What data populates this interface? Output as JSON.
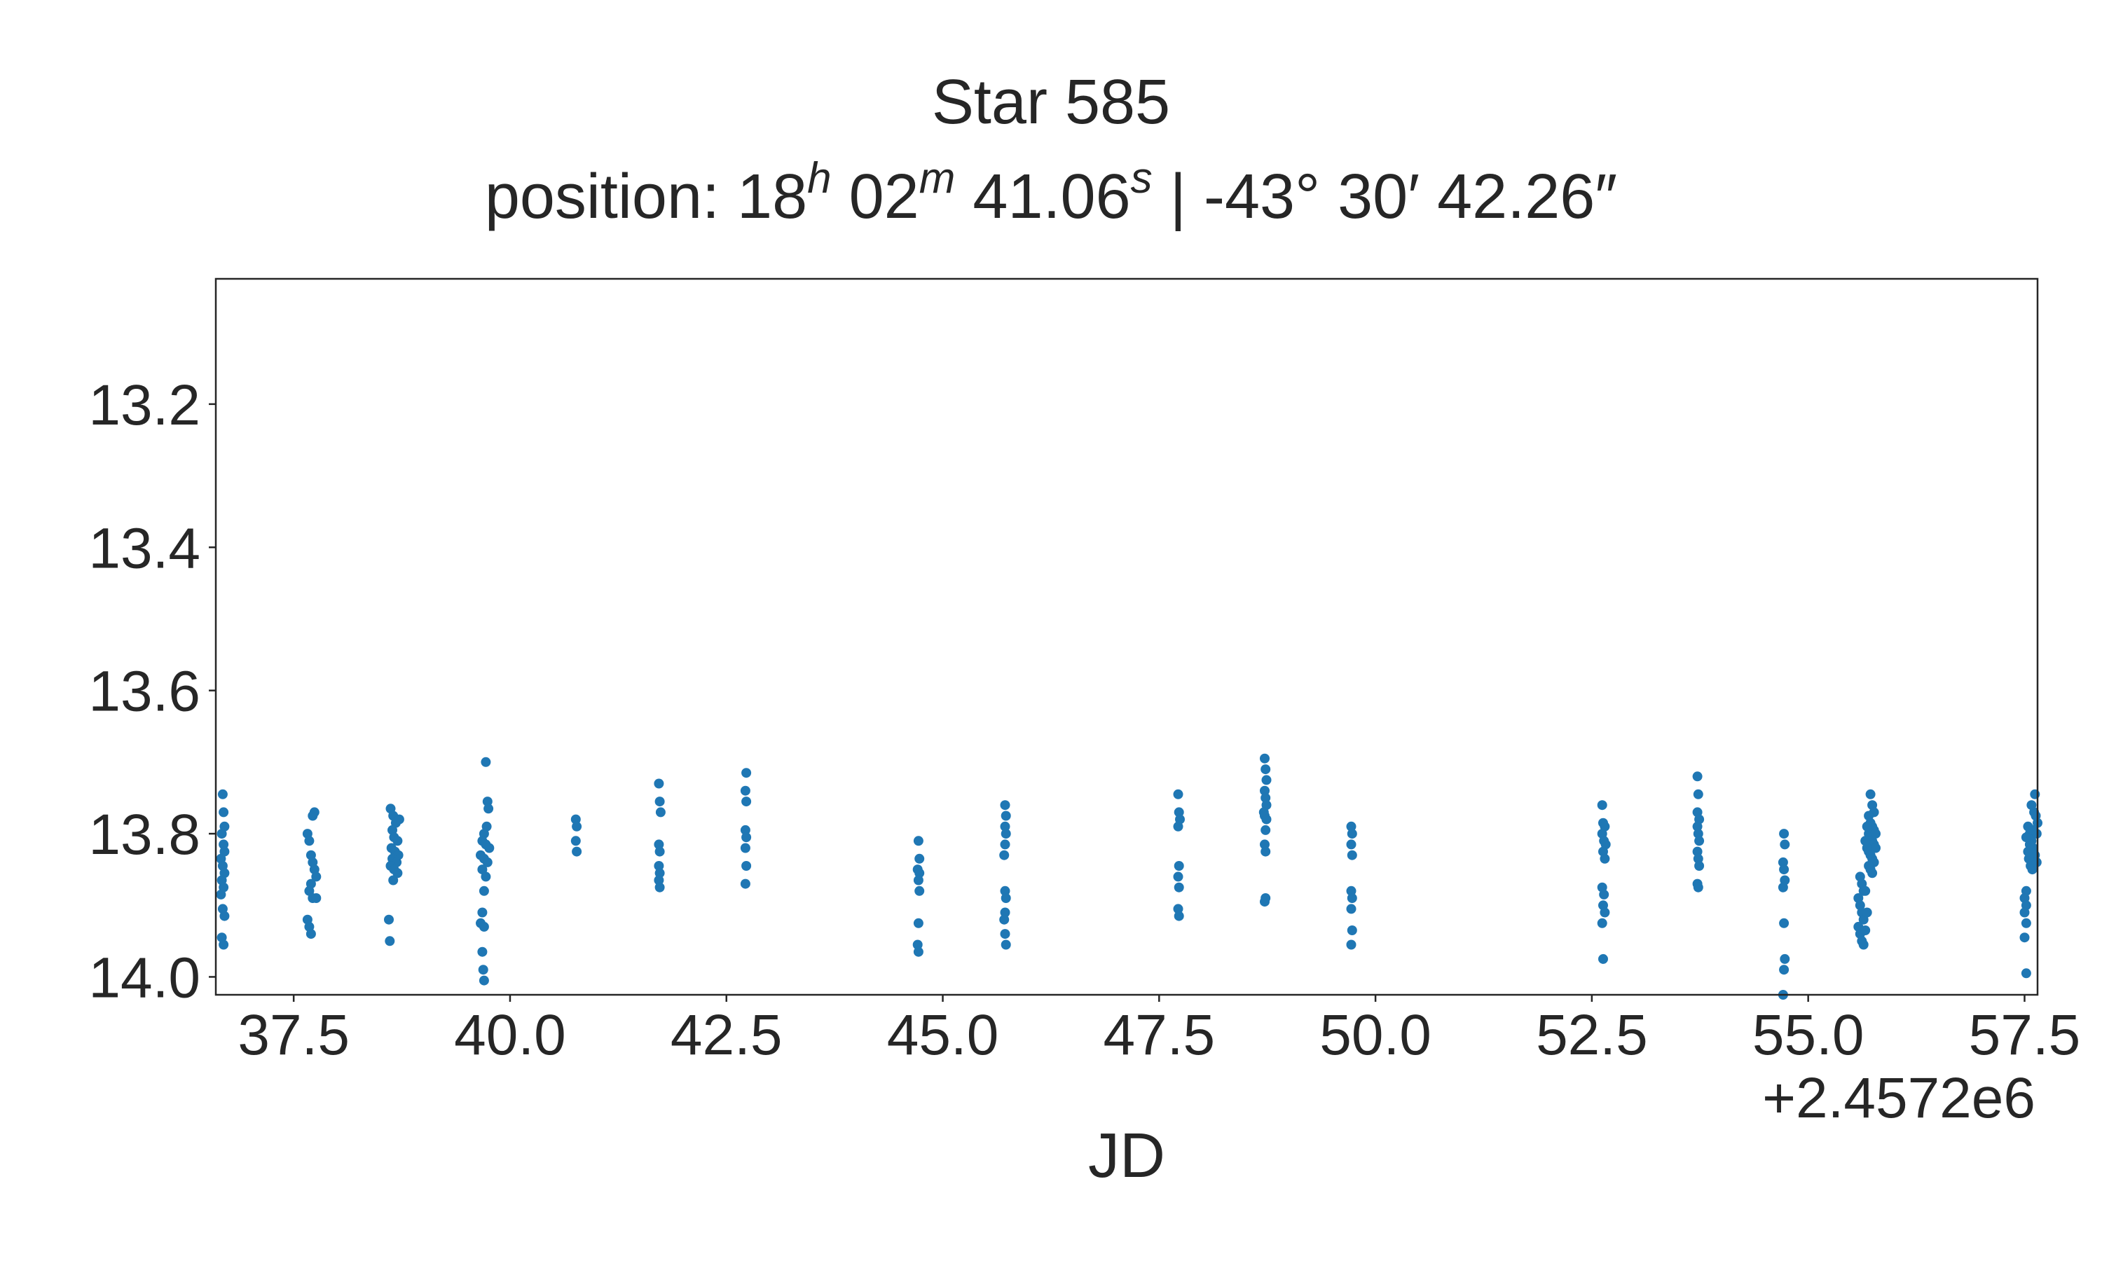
{
  "chart_data": {
    "type": "scatter",
    "title": "Star 585",
    "subtitle": {
      "prefix": "position: 18",
      "h": "h",
      "after_h": " 02",
      "m": "m",
      "after_m": " 41.06",
      "s": "s",
      "after_s": " | -43° 30′ 42.26″"
    },
    "xlabel": "JD",
    "ylabel": "",
    "x_offset_label": "+2.4572e6",
    "x_offset": 2457200,
    "xlim": [
      36.6,
      57.65
    ],
    "ylim": [
      14.025,
      13.025
    ],
    "y_inverted": true,
    "xticks": [
      37.5,
      40.0,
      42.5,
      45.0,
      47.5,
      50.0,
      52.5,
      55.0,
      57.5
    ],
    "xtick_labels": [
      "37.5",
      "40.0",
      "42.5",
      "45.0",
      "47.5",
      "50.0",
      "52.5",
      "55.0",
      "57.5"
    ],
    "yticks": [
      13.2,
      13.4,
      13.6,
      13.8,
      14.0
    ],
    "ytick_labels": [
      "13.2",
      "13.4",
      "13.6",
      "13.8",
      "14.0"
    ],
    "grid": false,
    "marker_color": "#1f77b4",
    "series": [
      {
        "points": [
          [
            36.68,
            13.745
          ],
          [
            36.69,
            13.77
          ],
          [
            36.7,
            13.79
          ],
          [
            36.67,
            13.8
          ],
          [
            36.69,
            13.815
          ],
          [
            36.7,
            13.825
          ],
          [
            36.66,
            13.835
          ],
          [
            36.68,
            13.845
          ],
          [
            36.7,
            13.855
          ],
          [
            36.67,
            13.865
          ],
          [
            36.69,
            13.875
          ],
          [
            36.66,
            13.885
          ],
          [
            36.68,
            13.905
          ],
          [
            36.7,
            13.915
          ],
          [
            36.67,
            13.945
          ],
          [
            36.69,
            13.955
          ],
          [
            37.66,
            13.8
          ],
          [
            37.68,
            13.81
          ],
          [
            37.7,
            13.83
          ],
          [
            37.72,
            13.84
          ],
          [
            37.74,
            13.85
          ],
          [
            37.76,
            13.86
          ],
          [
            37.7,
            13.87
          ],
          [
            37.68,
            13.88
          ],
          [
            37.72,
            13.89
          ],
          [
            37.66,
            13.92
          ],
          [
            37.68,
            13.93
          ],
          [
            37.7,
            13.94
          ],
          [
            37.72,
            13.775
          ],
          [
            37.74,
            13.77
          ],
          [
            37.76,
            13.89
          ],
          [
            38.62,
            13.765
          ],
          [
            38.65,
            13.775
          ],
          [
            38.68,
            13.785
          ],
          [
            38.72,
            13.78
          ],
          [
            38.64,
            13.795
          ],
          [
            38.66,
            13.805
          ],
          [
            38.7,
            13.81
          ],
          [
            38.63,
            13.82
          ],
          [
            38.67,
            13.825
          ],
          [
            38.71,
            13.83
          ],
          [
            38.64,
            13.835
          ],
          [
            38.69,
            13.84
          ],
          [
            38.62,
            13.845
          ],
          [
            38.66,
            13.85
          ],
          [
            38.7,
            13.855
          ],
          [
            38.65,
            13.865
          ],
          [
            38.6,
            13.92
          ],
          [
            38.61,
            13.95
          ],
          [
            39.72,
            13.7
          ],
          [
            39.74,
            13.755
          ],
          [
            39.75,
            13.765
          ],
          [
            39.73,
            13.79
          ],
          [
            39.7,
            13.8
          ],
          [
            39.68,
            13.81
          ],
          [
            39.72,
            13.815
          ],
          [
            39.76,
            13.82
          ],
          [
            39.66,
            13.83
          ],
          [
            39.7,
            13.835
          ],
          [
            39.74,
            13.84
          ],
          [
            39.68,
            13.85
          ],
          [
            39.72,
            13.86
          ],
          [
            39.7,
            13.88
          ],
          [
            39.68,
            13.91
          ],
          [
            39.66,
            13.925
          ],
          [
            39.7,
            13.93
          ],
          [
            39.68,
            13.965
          ],
          [
            39.69,
            13.99
          ],
          [
            39.7,
            14.005
          ],
          [
            40.76,
            13.78
          ],
          [
            40.77,
            13.79
          ],
          [
            40.76,
            13.81
          ],
          [
            40.77,
            13.825
          ],
          [
            41.72,
            13.73
          ],
          [
            41.73,
            13.755
          ],
          [
            41.74,
            13.77
          ],
          [
            41.72,
            13.815
          ],
          [
            41.73,
            13.825
          ],
          [
            41.72,
            13.845
          ],
          [
            41.73,
            13.855
          ],
          [
            41.72,
            13.865
          ],
          [
            41.73,
            13.875
          ],
          [
            42.73,
            13.715
          ],
          [
            42.72,
            13.74
          ],
          [
            42.73,
            13.755
          ],
          [
            42.72,
            13.795
          ],
          [
            42.73,
            13.805
          ],
          [
            42.72,
            13.82
          ],
          [
            42.73,
            13.845
          ],
          [
            42.72,
            13.87
          ],
          [
            44.72,
            13.81
          ],
          [
            44.73,
            13.835
          ],
          [
            44.71,
            13.85
          ],
          [
            44.73,
            13.855
          ],
          [
            44.72,
            13.865
          ],
          [
            44.73,
            13.88
          ],
          [
            44.72,
            13.925
          ],
          [
            44.71,
            13.955
          ],
          [
            44.72,
            13.965
          ],
          [
            45.72,
            13.76
          ],
          [
            45.73,
            13.775
          ],
          [
            45.72,
            13.79
          ],
          [
            45.73,
            13.8
          ],
          [
            45.72,
            13.815
          ],
          [
            45.71,
            13.83
          ],
          [
            45.72,
            13.88
          ],
          [
            45.73,
            13.89
          ],
          [
            45.72,
            13.91
          ],
          [
            45.71,
            13.92
          ],
          [
            45.72,
            13.94
          ],
          [
            45.73,
            13.955
          ],
          [
            47.72,
            13.745
          ],
          [
            47.73,
            13.77
          ],
          [
            47.74,
            13.78
          ],
          [
            47.72,
            13.79
          ],
          [
            47.73,
            13.845
          ],
          [
            47.72,
            13.86
          ],
          [
            47.73,
            13.875
          ],
          [
            47.72,
            13.905
          ],
          [
            47.73,
            13.915
          ],
          [
            48.72,
            13.695
          ],
          [
            48.73,
            13.71
          ],
          [
            48.74,
            13.725
          ],
          [
            48.72,
            13.74
          ],
          [
            48.73,
            13.75
          ],
          [
            48.74,
            13.76
          ],
          [
            48.71,
            13.77
          ],
          [
            48.72,
            13.775
          ],
          [
            48.74,
            13.78
          ],
          [
            48.73,
            13.795
          ],
          [
            48.72,
            13.815
          ],
          [
            48.73,
            13.825
          ],
          [
            48.72,
            13.895
          ],
          [
            48.73,
            13.89
          ],
          [
            49.72,
            13.79
          ],
          [
            49.73,
            13.8
          ],
          [
            49.72,
            13.815
          ],
          [
            49.73,
            13.83
          ],
          [
            49.72,
            13.88
          ],
          [
            49.73,
            13.89
          ],
          [
            49.72,
            13.905
          ],
          [
            49.73,
            13.935
          ],
          [
            49.72,
            13.955
          ],
          [
            52.62,
            13.76
          ],
          [
            52.63,
            13.785
          ],
          [
            52.65,
            13.79
          ],
          [
            52.62,
            13.8
          ],
          [
            52.64,
            13.81
          ],
          [
            52.66,
            13.815
          ],
          [
            52.63,
            13.825
          ],
          [
            52.65,
            13.835
          ],
          [
            52.62,
            13.875
          ],
          [
            52.64,
            13.885
          ],
          [
            52.63,
            13.9
          ],
          [
            52.65,
            13.91
          ],
          [
            52.62,
            13.925
          ],
          [
            52.63,
            13.975
          ],
          [
            53.72,
            13.72
          ],
          [
            53.73,
            13.745
          ],
          [
            53.72,
            13.77
          ],
          [
            53.74,
            13.78
          ],
          [
            53.72,
            13.79
          ],
          [
            53.73,
            13.8
          ],
          [
            53.74,
            13.81
          ],
          [
            53.72,
            13.825
          ],
          [
            53.73,
            13.835
          ],
          [
            53.74,
            13.845
          ],
          [
            53.72,
            13.87
          ],
          [
            53.73,
            13.875
          ],
          [
            54.72,
            13.8
          ],
          [
            54.73,
            13.815
          ],
          [
            54.71,
            13.84
          ],
          [
            54.72,
            13.85
          ],
          [
            54.73,
            13.865
          ],
          [
            54.71,
            13.875
          ],
          [
            54.72,
            13.925
          ],
          [
            54.73,
            13.975
          ],
          [
            54.72,
            13.99
          ],
          [
            54.71,
            14.025
          ],
          [
            55.6,
            13.86
          ],
          [
            55.62,
            13.87
          ],
          [
            55.64,
            13.88
          ],
          [
            55.58,
            13.89
          ],
          [
            55.6,
            13.9
          ],
          [
            55.62,
            13.91
          ],
          [
            55.64,
            13.92
          ],
          [
            55.58,
            13.93
          ],
          [
            55.6,
            13.94
          ],
          [
            55.62,
            13.95
          ],
          [
            55.64,
            13.955
          ],
          [
            55.66,
            13.88
          ],
          [
            55.66,
            13.935
          ],
          [
            55.68,
            13.91
          ],
          [
            55.72,
            13.745
          ],
          [
            55.74,
            13.76
          ],
          [
            55.76,
            13.77
          ],
          [
            55.7,
            13.775
          ],
          [
            55.72,
            13.785
          ],
          [
            55.74,
            13.79
          ],
          [
            55.76,
            13.795
          ],
          [
            55.7,
            13.8
          ],
          [
            55.72,
            13.805
          ],
          [
            55.74,
            13.81
          ],
          [
            55.76,
            13.815
          ],
          [
            55.68,
            13.82
          ],
          [
            55.7,
            13.825
          ],
          [
            55.72,
            13.83
          ],
          [
            55.74,
            13.835
          ],
          [
            55.76,
            13.84
          ],
          [
            55.7,
            13.845
          ],
          [
            55.72,
            13.85
          ],
          [
            55.74,
            13.855
          ],
          [
            55.78,
            13.8
          ],
          [
            55.78,
            13.82
          ],
          [
            55.68,
            13.79
          ],
          [
            55.66,
            13.81
          ],
          [
            57.52,
            13.88
          ],
          [
            57.5,
            13.89
          ],
          [
            57.52,
            13.9
          ],
          [
            57.5,
            13.91
          ],
          [
            57.52,
            13.925
          ],
          [
            57.5,
            13.945
          ],
          [
            57.52,
            13.995
          ],
          [
            57.54,
            13.79
          ],
          [
            57.56,
            13.8
          ],
          [
            57.58,
            13.81
          ],
          [
            57.6,
            13.82
          ],
          [
            57.62,
            13.83
          ],
          [
            57.55,
            13.835
          ],
          [
            57.57,
            13.845
          ],
          [
            57.59,
            13.85
          ],
          [
            57.61,
            13.77
          ],
          [
            57.63,
            13.775
          ],
          [
            57.65,
            13.785
          ],
          [
            57.58,
            13.76
          ],
          [
            57.62,
            13.745
          ],
          [
            57.64,
            13.8
          ],
          [
            57.6,
            13.795
          ],
          [
            57.56,
            13.815
          ],
          [
            57.64,
            13.84
          ],
          [
            57.52,
            13.805
          ],
          [
            57.54,
            13.825
          ]
        ]
      }
    ]
  }
}
